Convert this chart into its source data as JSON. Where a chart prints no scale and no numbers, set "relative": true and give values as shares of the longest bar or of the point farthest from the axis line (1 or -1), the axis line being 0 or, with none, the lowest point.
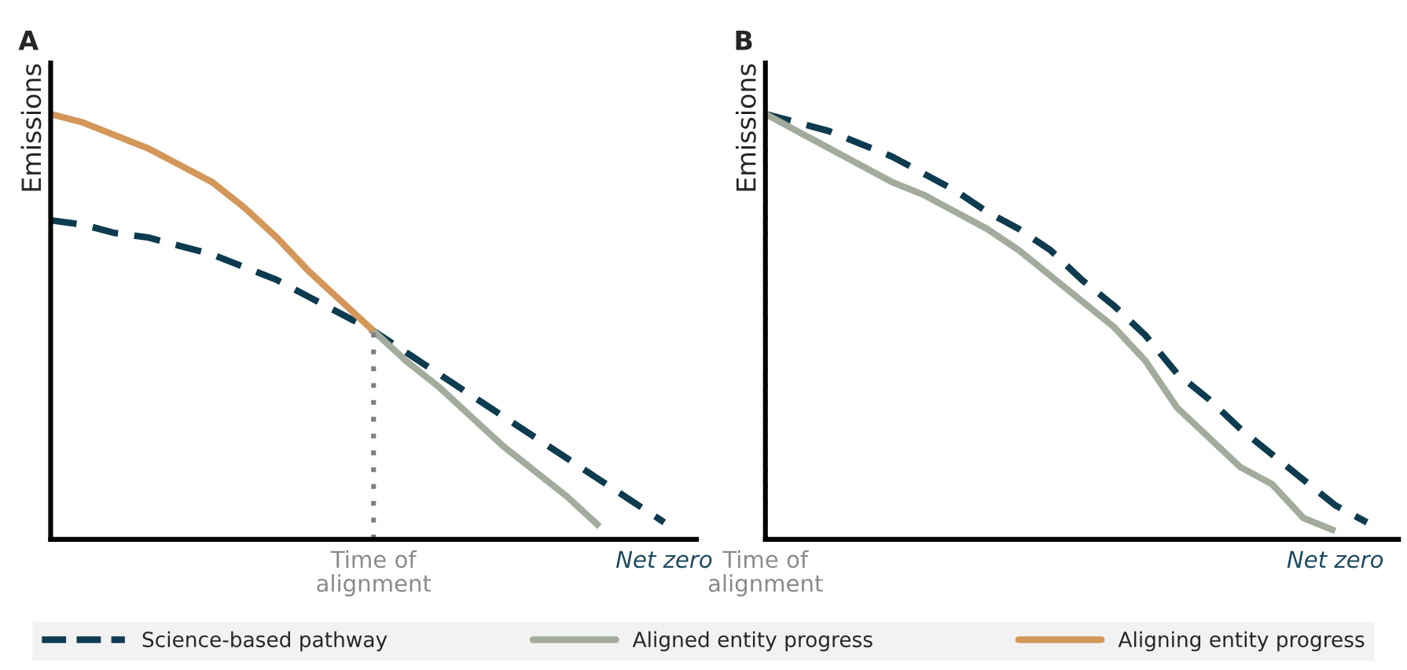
{
  "chart_data": [
    {
      "type": "line",
      "title": "A",
      "ylabel": "Emissions",
      "relative": true,
      "grid": false,
      "legend": "bottom",
      "marker": "none",
      "categories": [
        null,
        null,
        null,
        null,
        null,
        null,
        null,
        null,
        null,
        null,
        "Time of alignment",
        null,
        null,
        null,
        null,
        null,
        null,
        null,
        null,
        "Net zero",
        null
      ],
      "series": [
        {
          "name": "Science-based pathway",
          "color": "#0d3b4f",
          "line_style": "dashed",
          "values": [
            0.75,
            0.74,
            0.72,
            0.71,
            0.69,
            0.67,
            0.64,
            0.61,
            0.57,
            0.53,
            0.49,
            0.44,
            0.39,
            0.34,
            0.29,
            0.24,
            0.19,
            0.14,
            0.09,
            0.04,
            null
          ]
        },
        {
          "name": "Aligned entity progress",
          "color": "#a3ab9c",
          "line_style": "solid",
          "values": [
            null,
            null,
            null,
            null,
            null,
            null,
            null,
            null,
            null,
            null,
            0.49,
            0.42,
            0.36,
            0.29,
            0.22,
            0.16,
            0.1,
            0.03,
            null,
            null,
            null
          ]
        },
        {
          "name": "Aligning entity progress",
          "color": "#d4975a",
          "line_style": "solid",
          "values": [
            1.0,
            0.98,
            0.95,
            0.92,
            0.88,
            0.84,
            0.78,
            0.71,
            0.63,
            0.56,
            0.49,
            null,
            null,
            null,
            null,
            null,
            null,
            null,
            null,
            null,
            null
          ]
        }
      ],
      "ref_lines": [
        {
          "axis": "x",
          "value": "Time of alignment",
          "color": "#7f7f7f",
          "line_style": "dotted"
        }
      ]
    },
    {
      "type": "line",
      "title": "B",
      "ylabel": "Emissions",
      "relative": true,
      "grid": false,
      "legend": "bottom",
      "marker": "none",
      "categories": [
        "Time of alignment",
        null,
        null,
        null,
        null,
        null,
        null,
        null,
        null,
        null,
        null,
        null,
        null,
        null,
        null,
        null,
        null,
        null,
        "Net zero",
        null,
        null
      ],
      "series": [
        {
          "name": "Science-based pathway",
          "color": "#0d3b4f",
          "line_style": "dashed",
          "values": [
            1.0,
            0.98,
            0.96,
            0.93,
            0.9,
            0.86,
            0.82,
            0.77,
            0.73,
            0.68,
            0.61,
            0.55,
            0.48,
            0.39,
            0.33,
            0.26,
            0.2,
            0.14,
            0.08,
            0.04,
            null
          ]
        },
        {
          "name": "Aligned entity progress",
          "color": "#a3ab9c",
          "line_style": "solid",
          "values": [
            1.0,
            0.96,
            0.92,
            0.88,
            0.84,
            0.81,
            0.77,
            0.73,
            0.68,
            0.62,
            0.56,
            0.5,
            0.42,
            0.31,
            0.24,
            0.17,
            0.13,
            0.05,
            0.02,
            null,
            null
          ]
        }
      ],
      "ref_lines": [
        {
          "axis": "x",
          "value": "Time of alignment",
          "color": "#7f7f7f",
          "line_style": "dotted"
        }
      ]
    }
  ]
}
